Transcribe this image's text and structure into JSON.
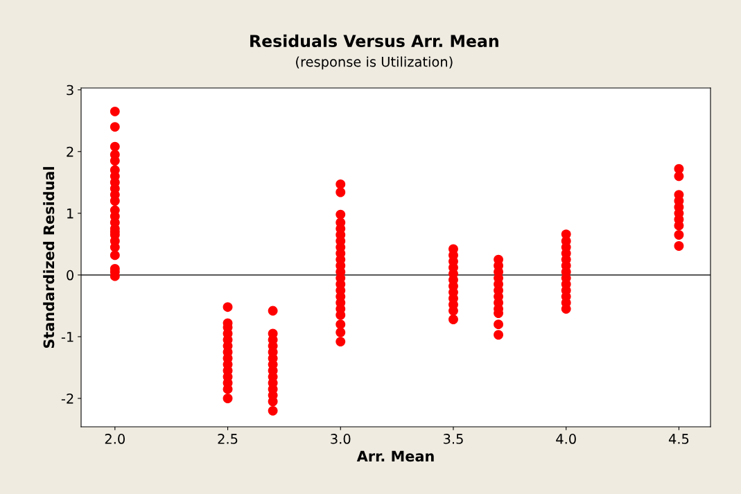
{
  "chart_data": {
    "type": "scatter",
    "title": "Residuals Versus Arr. Mean",
    "subtitle": "(response is Utilization)",
    "xlabel": "Arr. Mean",
    "ylabel": "Standardized Residual",
    "x": [
      2.0,
      2.0,
      2.0,
      2.0,
      2.0,
      2.0,
      2.0,
      2.0,
      2.0,
      2.0,
      2.0,
      2.0,
      2.0,
      2.0,
      2.0,
      2.0,
      2.0,
      2.0,
      2.0,
      2.0,
      2.0,
      2.0,
      2.0,
      2.5,
      2.5,
      2.5,
      2.5,
      2.5,
      2.5,
      2.5,
      2.5,
      2.5,
      2.5,
      2.5,
      2.5,
      2.5,
      2.5,
      2.7,
      2.7,
      2.7,
      2.7,
      2.7,
      2.7,
      2.7,
      2.7,
      2.7,
      2.7,
      2.7,
      2.7,
      2.7,
      2.7,
      3.0,
      3.0,
      3.0,
      3.0,
      3.0,
      3.0,
      3.0,
      3.0,
      3.0,
      3.0,
      3.0,
      3.0,
      3.0,
      3.0,
      3.0,
      3.0,
      3.0,
      3.0,
      3.0,
      3.0,
      3.0,
      3.0,
      3.5,
      3.5,
      3.5,
      3.5,
      3.5,
      3.5,
      3.5,
      3.5,
      3.5,
      3.5,
      3.5,
      3.5,
      3.7,
      3.7,
      3.7,
      3.7,
      3.7,
      3.7,
      3.7,
      3.7,
      3.7,
      3.7,
      3.7,
      3.7,
      4.0,
      4.0,
      4.0,
      4.0,
      4.0,
      4.0,
      4.0,
      4.0,
      4.0,
      4.0,
      4.0,
      4.0,
      4.0,
      4.5,
      4.5,
      4.5,
      4.5,
      4.5,
      4.5,
      4.5,
      4.5,
      4.5,
      4.5
    ],
    "values": [
      2.65,
      2.4,
      2.08,
      1.95,
      1.85,
      1.7,
      1.6,
      1.5,
      1.4,
      1.3,
      1.2,
      1.05,
      0.95,
      0.85,
      0.75,
      0.65,
      0.55,
      0.45,
      0.32,
      0.1,
      0.05,
      -0.02,
      0.7,
      -0.52,
      -0.78,
      -0.85,
      -0.95,
      -1.05,
      -1.15,
      -1.25,
      -1.35,
      -1.45,
      -1.55,
      -1.65,
      -1.75,
      -1.85,
      -2.0,
      -0.58,
      -0.95,
      -1.05,
      -1.15,
      -1.25,
      -1.35,
      -1.45,
      -1.55,
      -1.65,
      -1.75,
      -1.85,
      -1.95,
      -2.05,
      -2.2,
      1.47,
      1.34,
      0.98,
      0.85,
      0.75,
      0.65,
      0.55,
      0.45,
      0.35,
      0.25,
      0.15,
      0.05,
      -0.05,
      -0.15,
      -0.25,
      -0.35,
      -0.45,
      -0.55,
      -0.65,
      -0.8,
      -0.93,
      -1.08,
      0.42,
      0.32,
      0.22,
      0.12,
      0.02,
      -0.08,
      -0.18,
      -0.28,
      -0.38,
      -0.48,
      -0.58,
      -0.72,
      0.25,
      0.15,
      0.05,
      -0.05,
      -0.15,
      -0.25,
      -0.35,
      -0.45,
      -0.55,
      -0.62,
      -0.8,
      -0.97,
      0.66,
      0.55,
      0.45,
      0.35,
      0.25,
      0.15,
      0.05,
      -0.05,
      -0.15,
      -0.25,
      -0.35,
      -0.45,
      -0.55,
      1.72,
      1.6,
      1.3,
      1.2,
      1.1,
      1.0,
      0.9,
      0.8,
      0.65,
      0.47
    ],
    "color": "#ff0000",
    "marker": "circle",
    "xlim": [
      1.85,
      4.64
    ],
    "ylim": [
      -2.46,
      3.03
    ],
    "xticks": [
      {
        "value": 2.0,
        "label": "2.0"
      },
      {
        "value": 2.5,
        "label": "2.5"
      },
      {
        "value": 3.0,
        "label": "3.0"
      },
      {
        "value": 3.5,
        "label": "3.5"
      },
      {
        "value": 4.0,
        "label": "4.0"
      },
      {
        "value": 4.5,
        "label": "4.5"
      }
    ],
    "yticks": [
      -2,
      -1,
      0,
      1,
      2,
      3
    ],
    "ref_lines": [
      {
        "axis": "y",
        "value": 0,
        "color": "#404040"
      }
    ],
    "grid": false,
    "legend": false
  }
}
